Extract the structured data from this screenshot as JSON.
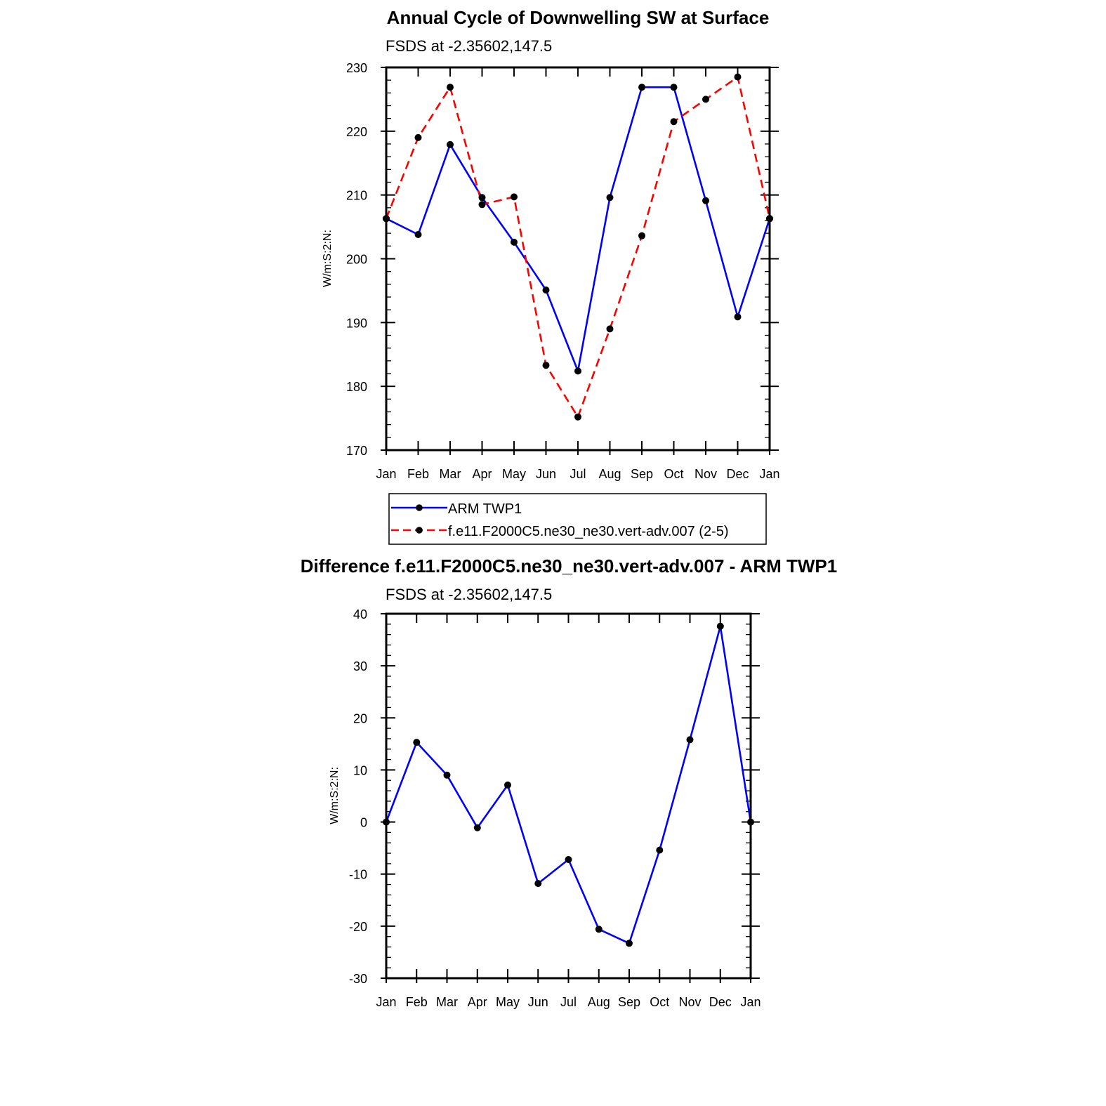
{
  "chart_data": [
    {
      "type": "line",
      "title": "Annual Cycle of Downwelling SW at Surface",
      "subtitle": "FSDS at -2.35602,147.5",
      "xlabel": "",
      "ylabel": "W/m:S:2:N:",
      "categories": [
        "Jan",
        "Feb",
        "Mar",
        "Apr",
        "May",
        "Jun",
        "Jul",
        "Aug",
        "Sep",
        "Oct",
        "Nov",
        "Dec",
        "Jan"
      ],
      "ylim": [
        170,
        230
      ],
      "yticks": [
        "230",
        "220",
        "210",
        "200",
        "190",
        "180",
        "170"
      ],
      "series": [
        {
          "name": "ARM TWP1",
          "color": "#0000ff",
          "dash": "solid",
          "values": [
            206.3,
            203.8,
            217.9,
            209.6,
            202.6,
            195.1,
            182.4,
            209.6,
            226.9,
            226.9,
            209.1,
            190.9,
            206.3
          ]
        },
        {
          "name": "f.e11.F2000C5.ne30_ne30.vert-adv.007 (2-5)",
          "color": "#ff0000",
          "dash": "dashed",
          "values": [
            206.3,
            219.0,
            226.9,
            208.5,
            209.7,
            183.3,
            175.2,
            189.0,
            203.6,
            221.5,
            225.0,
            228.5,
            206.3
          ]
        }
      ],
      "legend": {
        "placement": "below",
        "entries": [
          "ARM TWP1",
          "f.e11.F2000C5.ne30_ne30.vert-adv.007 (2-5)"
        ]
      }
    },
    {
      "type": "line",
      "title": "Difference f.e11.F2000C5.ne30_ne30.vert-adv.007 - ARM TWP1",
      "subtitle": "FSDS at -2.35602,147.5",
      "xlabel": "",
      "ylabel": "W/m:S:2:N:",
      "categories": [
        "Jan",
        "Feb",
        "Mar",
        "Apr",
        "May",
        "Jun",
        "Jul",
        "Aug",
        "Sep",
        "Oct",
        "Nov",
        "Dec",
        "Jan"
      ],
      "ylim": [
        -30,
        40
      ],
      "yticks": [
        "40",
        "30",
        "20",
        "10",
        "0",
        "-10",
        "-20",
        "-30"
      ],
      "series": [
        {
          "name": "Difference",
          "color": "#0000ff",
          "dash": "solid",
          "values": [
            0.0,
            15.3,
            9.0,
            -1.1,
            7.1,
            -11.8,
            -7.2,
            -20.6,
            -23.3,
            -5.4,
            15.8,
            37.6,
            0.0
          ]
        }
      ]
    }
  ]
}
